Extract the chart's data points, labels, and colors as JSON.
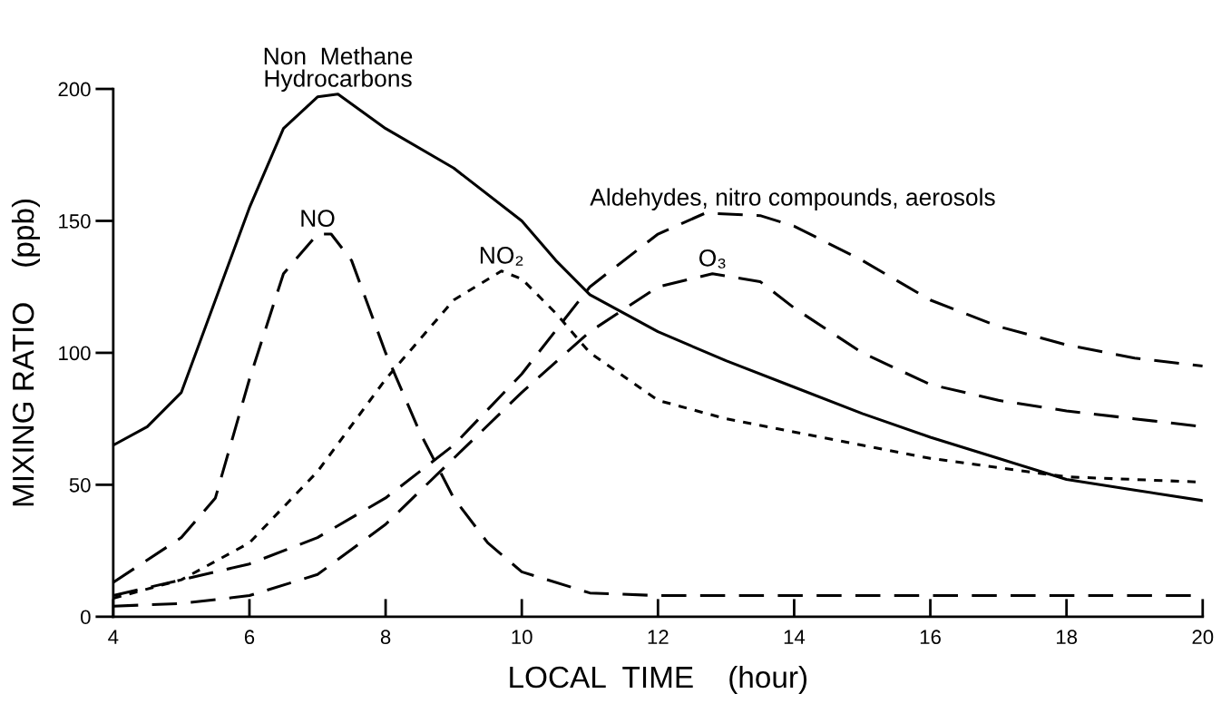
{
  "chart_data": {
    "type": "line",
    "xlabel": "LOCAL  TIME    (hour)",
    "ylabel": "MIXING RATIO    (ppb)",
    "xlim": [
      4,
      20
    ],
    "xticks": [
      4,
      6,
      8,
      10,
      12,
      14,
      16,
      18,
      20
    ],
    "ylim": [
      0,
      200
    ],
    "yticks": [
      0,
      50,
      100,
      150,
      200
    ],
    "grid": false,
    "legend": false,
    "series": [
      {
        "name": "Non  Methane\nHydrocarbons",
        "color": "#000000",
        "line_style": "solid",
        "x": [
          4,
          4.5,
          5,
          5.5,
          6,
          6.5,
          7,
          7.3,
          8,
          9,
          10,
          10.5,
          11,
          12,
          13,
          14,
          15,
          16,
          17,
          18,
          19,
          20
        ],
        "values": [
          65,
          72,
          85,
          120,
          155,
          185,
          197,
          198,
          185,
          170,
          150,
          135,
          122,
          108,
          97,
          87,
          77,
          68,
          60,
          52,
          48,
          44
        ]
      },
      {
        "name": "NO",
        "color": "#000000",
        "line_style": "dashed",
        "x": [
          4,
          5,
          5.5,
          6,
          6.5,
          7,
          7.2,
          7.5,
          8,
          8.5,
          9,
          9.5,
          10,
          11,
          12,
          14,
          16,
          18,
          20
        ],
        "values": [
          13,
          30,
          45,
          90,
          130,
          145,
          145,
          135,
          100,
          70,
          45,
          28,
          17,
          9,
          8,
          8,
          8,
          8,
          8
        ]
      },
      {
        "name": "NO₂",
        "color": "#000000",
        "line_style": "dotted",
        "x": [
          4,
          5,
          6,
          7,
          8,
          9,
          9.7,
          10,
          10.5,
          11,
          12,
          13,
          14,
          16,
          18,
          20
        ],
        "values": [
          7,
          14,
          28,
          55,
          90,
          120,
          131,
          128,
          115,
          100,
          82,
          75,
          70,
          60,
          53,
          51
        ]
      },
      {
        "name": "Aldehydes, nitro compounds, aerosols",
        "color": "#000000",
        "line_style": "dashed",
        "x": [
          4,
          5,
          6,
          7,
          8,
          9,
          10,
          11,
          12,
          12.7,
          13.5,
          14,
          15,
          16,
          17,
          18,
          19,
          20
        ],
        "values": [
          8,
          14,
          20,
          30,
          45,
          65,
          92,
          125,
          145,
          153,
          152,
          148,
          135,
          120,
          110,
          103,
          98,
          95
        ]
      },
      {
        "name": "O₃",
        "color": "#000000",
        "line_style": "dashed",
        "x": [
          4,
          5,
          6,
          7,
          8,
          9,
          10,
          11,
          12,
          12.8,
          13.5,
          14,
          15,
          16,
          17,
          18,
          19,
          20
        ],
        "values": [
          4,
          5,
          8,
          16,
          35,
          60,
          85,
          108,
          125,
          130,
          127,
          117,
          100,
          88,
          82,
          78,
          75,
          72
        ]
      }
    ]
  }
}
